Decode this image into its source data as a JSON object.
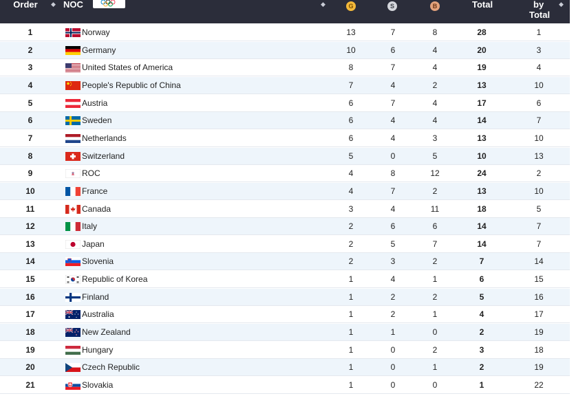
{
  "header": {
    "order": "Order",
    "noc": "NOC",
    "gold": "G",
    "silver": "S",
    "bronze": "B",
    "total": "Total",
    "rank_by_total_line1": "by",
    "rank_by_total_line2": "Total",
    "sort_glyph": "◆"
  },
  "rows": [
    {
      "order": "1",
      "noc": "Norway",
      "flag": "norway",
      "g": "13",
      "s": "7",
      "b": "8",
      "total": "28",
      "rank": "1"
    },
    {
      "order": "2",
      "noc": "Germany",
      "flag": "germany",
      "g": "10",
      "s": "6",
      "b": "4",
      "total": "20",
      "rank": "3"
    },
    {
      "order": "3",
      "noc": "United States of America",
      "flag": "usa",
      "g": "8",
      "s": "7",
      "b": "4",
      "total": "19",
      "rank": "4"
    },
    {
      "order": "4",
      "noc": "People's Republic of China",
      "flag": "china",
      "g": "7",
      "s": "4",
      "b": "2",
      "total": "13",
      "rank": "10"
    },
    {
      "order": "5",
      "noc": "Austria",
      "flag": "austria",
      "g": "6",
      "s": "7",
      "b": "4",
      "total": "17",
      "rank": "6"
    },
    {
      "order": "6",
      "noc": "Sweden",
      "flag": "sweden",
      "g": "6",
      "s": "4",
      "b": "4",
      "total": "14",
      "rank": "7"
    },
    {
      "order": "7",
      "noc": "Netherlands",
      "flag": "netherlands",
      "g": "6",
      "s": "4",
      "b": "3",
      "total": "13",
      "rank": "10"
    },
    {
      "order": "8",
      "noc": "Switzerland",
      "flag": "switzerland",
      "g": "5",
      "s": "0",
      "b": "5",
      "total": "10",
      "rank": "13"
    },
    {
      "order": "9",
      "noc": "ROC",
      "flag": "roc",
      "g": "4",
      "s": "8",
      "b": "12",
      "total": "24",
      "rank": "2"
    },
    {
      "order": "10",
      "noc": "France",
      "flag": "france",
      "g": "4",
      "s": "7",
      "b": "2",
      "total": "13",
      "rank": "10"
    },
    {
      "order": "11",
      "noc": "Canada",
      "flag": "canada",
      "g": "3",
      "s": "4",
      "b": "11",
      "total": "18",
      "rank": "5"
    },
    {
      "order": "12",
      "noc": "Italy",
      "flag": "italy",
      "g": "2",
      "s": "6",
      "b": "6",
      "total": "14",
      "rank": "7"
    },
    {
      "order": "13",
      "noc": "Japan",
      "flag": "japan",
      "g": "2",
      "s": "5",
      "b": "7",
      "total": "14",
      "rank": "7"
    },
    {
      "order": "14",
      "noc": "Slovenia",
      "flag": "slovenia",
      "g": "2",
      "s": "3",
      "b": "2",
      "total": "7",
      "rank": "14"
    },
    {
      "order": "15",
      "noc": "Republic of Korea",
      "flag": "korea",
      "g": "1",
      "s": "4",
      "b": "1",
      "total": "6",
      "rank": "15"
    },
    {
      "order": "16",
      "noc": "Finland",
      "flag": "finland",
      "g": "1",
      "s": "2",
      "b": "2",
      "total": "5",
      "rank": "16"
    },
    {
      "order": "17",
      "noc": "Australia",
      "flag": "australia",
      "g": "1",
      "s": "2",
      "b": "1",
      "total": "4",
      "rank": "17"
    },
    {
      "order": "18",
      "noc": "New Zealand",
      "flag": "newzealand",
      "g": "1",
      "s": "1",
      "b": "0",
      "total": "2",
      "rank": "19"
    },
    {
      "order": "19",
      "noc": "Hungary",
      "flag": "hungary",
      "g": "1",
      "s": "0",
      "b": "2",
      "total": "3",
      "rank": "18"
    },
    {
      "order": "20",
      "noc": "Czech Republic",
      "flag": "czech",
      "g": "1",
      "s": "0",
      "b": "1",
      "total": "2",
      "rank": "19"
    },
    {
      "order": "21",
      "noc": "Slovakia",
      "flag": "slovakia",
      "g": "1",
      "s": "0",
      "b": "0",
      "total": "1",
      "rank": "22"
    }
  ]
}
